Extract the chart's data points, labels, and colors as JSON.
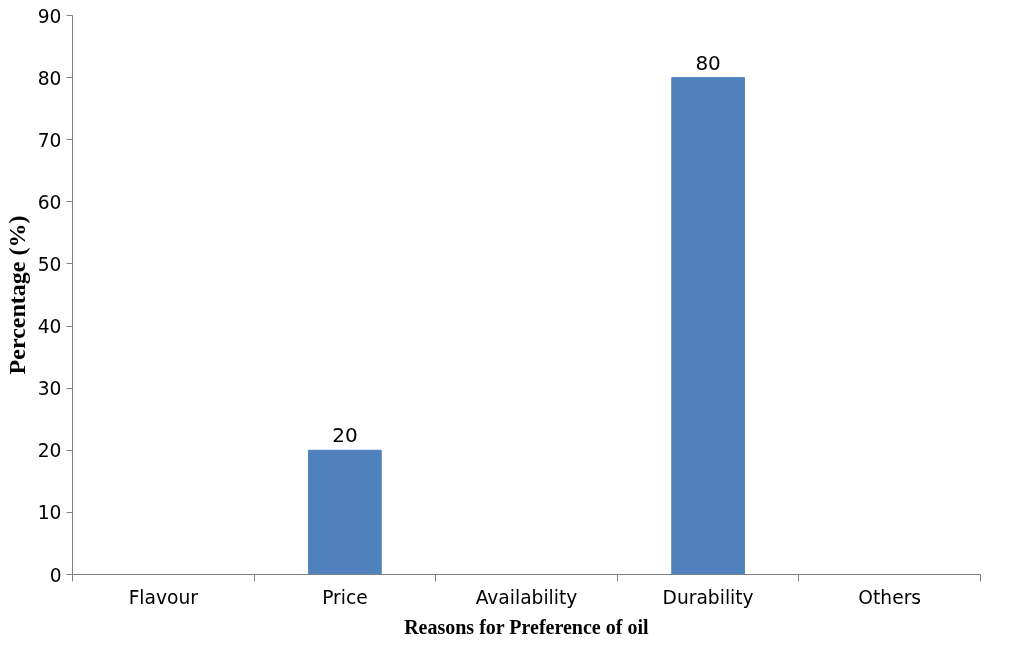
{
  "chart_data": {
    "type": "bar",
    "xlabel": "Reasons for Preference of oil",
    "ylabel": "Percentage (%)",
    "categories": [
      "Flavour",
      "Price",
      "Availability",
      "Durability",
      "Others"
    ],
    "values": [
      0,
      20,
      0,
      80,
      0
    ],
    "value_labels": [
      null,
      "20",
      null,
      "80",
      null
    ],
    "color": "#4f81bd",
    "ylim": [
      0,
      90
    ],
    "yticks": [
      0,
      10,
      20,
      30,
      40,
      50,
      60,
      70,
      80,
      90
    ],
    "grid": false
  }
}
